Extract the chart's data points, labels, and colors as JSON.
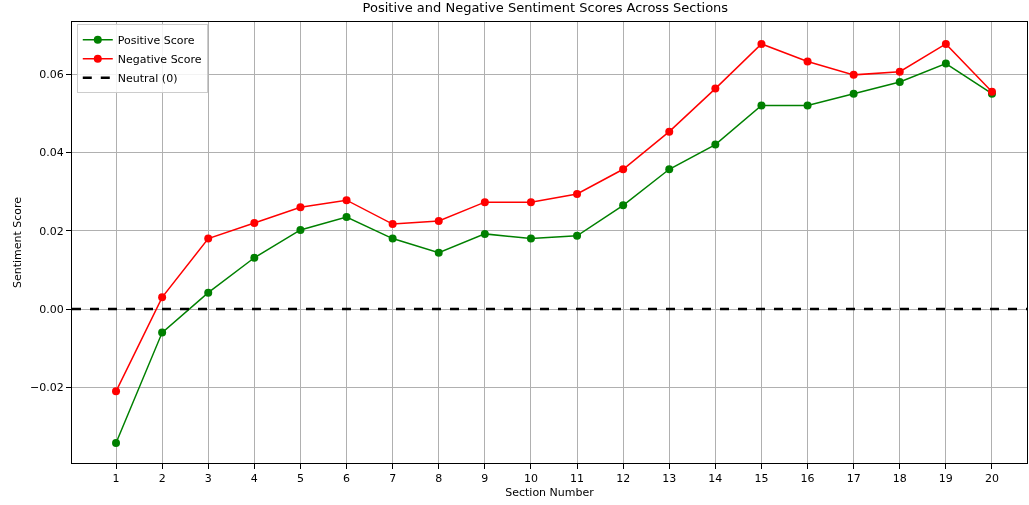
{
  "chart_data": {
    "type": "line",
    "title": "Positive and Negative Sentiment Scores Across Sections",
    "xlabel": "Section Number",
    "ylabel": "Sentiment Score",
    "x": [
      1,
      2,
      3,
      4,
      5,
      6,
      7,
      8,
      9,
      10,
      11,
      12,
      13,
      14,
      15,
      16,
      17,
      18,
      19,
      20
    ],
    "series": [
      {
        "name": "Positive Score",
        "color": "#008000",
        "values": [
          -0.0342,
          -0.006,
          0.0042,
          0.0131,
          0.0202,
          0.0235,
          0.018,
          0.0144,
          0.0192,
          0.018,
          0.0187,
          0.0265,
          0.0357,
          0.042,
          0.052,
          0.052,
          0.055,
          0.058,
          0.0627,
          0.055
        ]
      },
      {
        "name": "Negative Score",
        "color": "#ff0000",
        "values": [
          -0.021,
          0.003,
          0.018,
          0.022,
          0.026,
          0.0278,
          0.0217,
          0.0225,
          0.0273,
          0.0273,
          0.0294,
          0.0357,
          0.0453,
          0.0563,
          0.0677,
          0.0632,
          0.0598,
          0.0606,
          0.0677,
          0.0555
        ]
      }
    ],
    "ref_lines": [
      {
        "axis": "y",
        "value": 0,
        "label": "Neutral (0)",
        "color": "#000000",
        "line_style": "dashed"
      }
    ],
    "xlim": [
      0.045,
      20.76
    ],
    "xticks": [
      1,
      2,
      3,
      4,
      5,
      6,
      7,
      8,
      9,
      10,
      11,
      12,
      13,
      14,
      15,
      16,
      17,
      18,
      19,
      20
    ],
    "ylim": [
      -0.0393,
      0.0733
    ],
    "yticks": [
      {
        "value": -0.02,
        "label": "−0.02"
      },
      {
        "value": 0,
        "label": "0.00"
      },
      {
        "value": 0.02,
        "label": "0.02"
      },
      {
        "value": 0.04,
        "label": "0.04"
      },
      {
        "value": 0.06,
        "label": "0.06"
      }
    ],
    "grid": true,
    "legend": "top left",
    "marker": "circle",
    "line_style": "solid"
  }
}
